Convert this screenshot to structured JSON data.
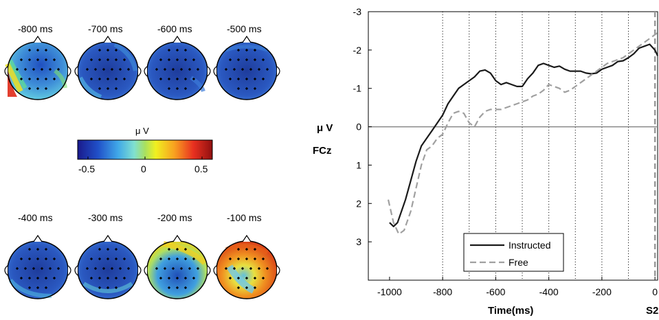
{
  "topomaps": {
    "row1": [
      {
        "label": "-800 ms",
        "amplitude": -0.25
      },
      {
        "label": "-700 ms",
        "amplitude": -0.4
      },
      {
        "label": "-600 ms",
        "amplitude": -0.45
      },
      {
        "label": "-500 ms",
        "amplitude": -0.45
      }
    ],
    "row2": [
      {
        "label": "-400 ms",
        "amplitude": -0.4
      },
      {
        "label": "-300 ms",
        "amplitude": -0.38
      },
      {
        "label": "-200 ms",
        "amplitude": -0.2
      },
      {
        "label": "-100 ms",
        "amplitude": 0.3
      }
    ]
  },
  "colorbar": {
    "unit": "μ V",
    "ticks": [
      "-0.5",
      "0",
      "0.5"
    ],
    "range": [
      -0.6,
      0.6
    ]
  },
  "chart_data": {
    "type": "line",
    "ylabel": "μ V",
    "channel": "FCz",
    "xlabel": "Time(ms)",
    "event_marker": "S2",
    "xlim": [
      -1080,
      10
    ],
    "ylim": [
      -3,
      4
    ],
    "y_reversed": true,
    "x_ticks": [
      -1000,
      -800,
      -600,
      -400,
      -200,
      0
    ],
    "y_ticks": [
      -3,
      -2,
      -1,
      0,
      1,
      2,
      3
    ],
    "vertical_dotted_lines": [
      -800,
      -700,
      -600,
      -500,
      -400,
      -300,
      -200,
      -100
    ],
    "legend_position": "bottom-left",
    "series": [
      {
        "name": "Instructed",
        "style": "solid",
        "color": "#1a1a1a",
        "x": [
          -1000,
          -985,
          -970,
          -955,
          -940,
          -920,
          -900,
          -880,
          -860,
          -840,
          -820,
          -800,
          -780,
          -760,
          -740,
          -720,
          -700,
          -680,
          -660,
          -640,
          -620,
          -600,
          -580,
          -560,
          -540,
          -520,
          -500,
          -480,
          -460,
          -440,
          -420,
          -400,
          -380,
          -360,
          -340,
          -320,
          -300,
          -280,
          -260,
          -240,
          -220,
          -200,
          -180,
          -160,
          -140,
          -120,
          -100,
          -80,
          -60,
          -40,
          -20,
          0,
          10
        ],
        "y": [
          2.5,
          2.6,
          2.5,
          2.2,
          1.9,
          1.4,
          0.9,
          0.5,
          0.3,
          0.1,
          -0.1,
          -0.3,
          -0.6,
          -0.8,
          -1.0,
          -1.1,
          -1.2,
          -1.3,
          -1.45,
          -1.48,
          -1.4,
          -1.2,
          -1.1,
          -1.15,
          -1.1,
          -1.05,
          -1.05,
          -1.25,
          -1.4,
          -1.6,
          -1.65,
          -1.6,
          -1.55,
          -1.58,
          -1.5,
          -1.45,
          -1.45,
          -1.45,
          -1.4,
          -1.38,
          -1.4,
          -1.5,
          -1.55,
          -1.6,
          -1.7,
          -1.72,
          -1.8,
          -1.9,
          -2.05,
          -2.1,
          -2.15,
          -2.0,
          -1.85
        ]
      },
      {
        "name": "Free",
        "style": "dashed",
        "color": "#a0a0a0",
        "x": [
          -1005,
          -985,
          -965,
          -945,
          -920,
          -900,
          -880,
          -860,
          -840,
          -820,
          -800,
          -780,
          -760,
          -740,
          -720,
          -700,
          -680,
          -660,
          -640,
          -620,
          -600,
          -580,
          -560,
          -540,
          -520,
          -500,
          -480,
          -460,
          -440,
          -420,
          -400,
          -380,
          -360,
          -340,
          -320,
          -300,
          -280,
          -260,
          -240,
          -220,
          -200,
          -180,
          -160,
          -140,
          -120,
          -100,
          -80,
          -60,
          -40,
          -20,
          0,
          10
        ],
        "y": [
          1.9,
          2.5,
          2.8,
          2.7,
          2.2,
          1.6,
          1.0,
          0.6,
          0.5,
          0.3,
          0.2,
          -0.1,
          -0.35,
          -0.4,
          -0.35,
          -0.1,
          0.0,
          -0.25,
          -0.4,
          -0.45,
          -0.45,
          -0.45,
          -0.5,
          -0.55,
          -0.6,
          -0.65,
          -0.7,
          -0.8,
          -0.85,
          -0.95,
          -1.1,
          -1.05,
          -1.0,
          -0.9,
          -0.95,
          -1.05,
          -1.15,
          -1.25,
          -1.35,
          -1.45,
          -1.55,
          -1.65,
          -1.7,
          -1.75,
          -1.8,
          -1.9,
          -2.0,
          -2.1,
          -2.2,
          -2.3,
          -2.4,
          -2.45
        ]
      }
    ]
  }
}
